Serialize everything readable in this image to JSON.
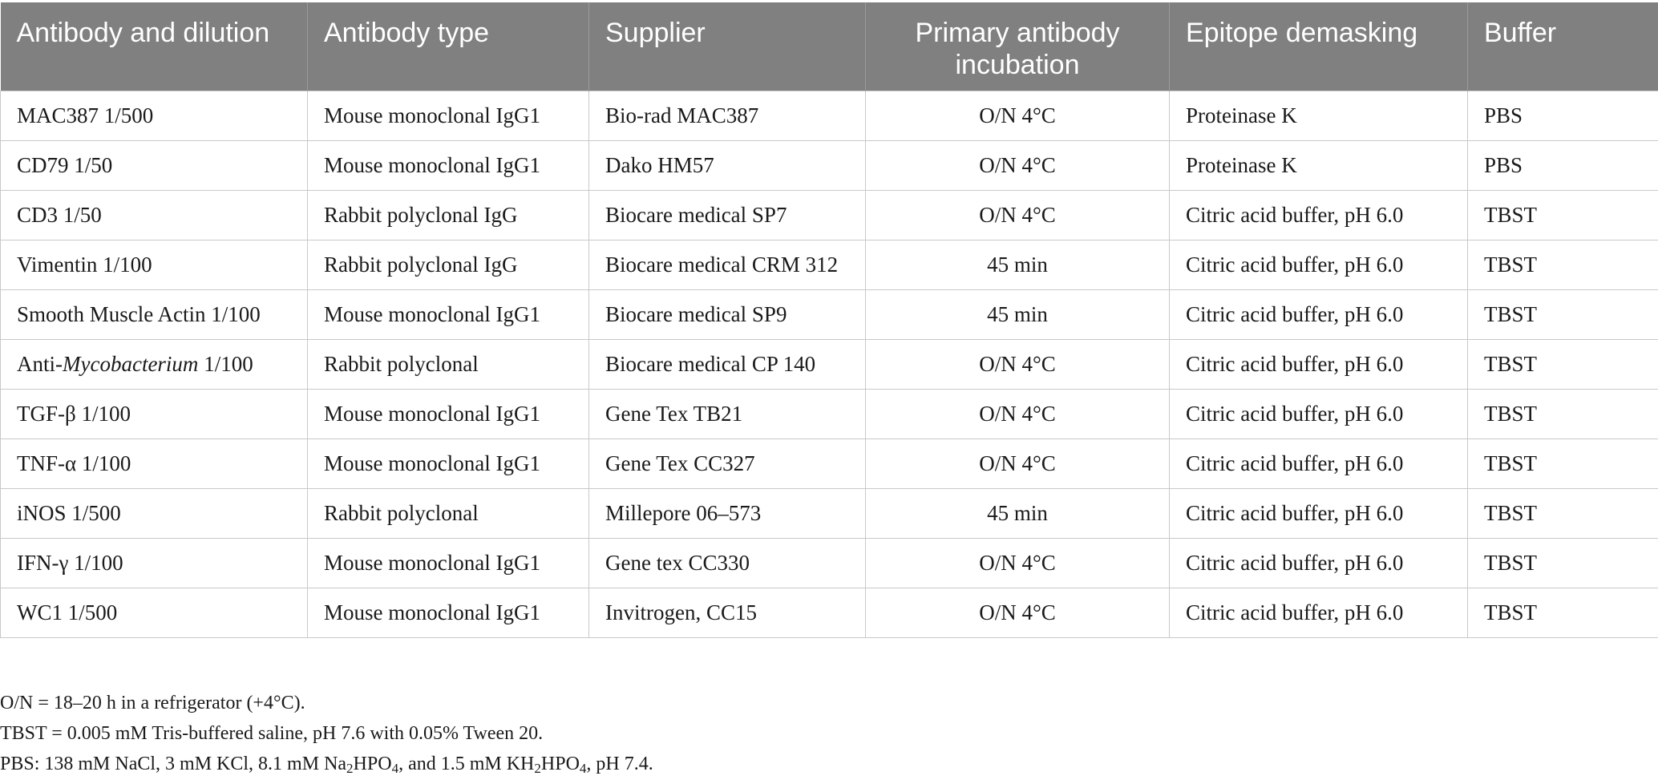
{
  "table": {
    "headers": [
      "Antibody and dilution",
      "Antibody type",
      "Supplier",
      "Primary antibody incubation",
      "Epitope demasking",
      "Buffer"
    ],
    "rows": [
      {
        "antibody": "MAC387 1/500",
        "type": "Mouse monoclonal IgG1",
        "supplier": "Bio-rad MAC387",
        "incubation": "O/N 4°C",
        "demasking": "Proteinase K",
        "buffer": "PBS"
      },
      {
        "antibody": "CD79 1/50",
        "type": "Mouse monoclonal IgG1",
        "supplier": "Dako HM57",
        "incubation": "O/N 4°C",
        "demasking": "Proteinase K",
        "buffer": "PBS"
      },
      {
        "antibody": "CD3 1/50",
        "type": "Rabbit polyclonal IgG",
        "supplier": "Biocare medical SP7",
        "incubation": "O/N 4°C",
        "demasking": "Citric acid buffer, pH 6.0",
        "buffer": "TBST"
      },
      {
        "antibody": "Vimentin 1/100",
        "type": "Rabbit polyclonal IgG",
        "supplier": "Biocare medical CRM 312",
        "incubation": "45 min",
        "demasking": "Citric acid buffer, pH 6.0",
        "buffer": "TBST"
      },
      {
        "antibody": "Smooth Muscle Actin 1/100",
        "type": "Mouse monoclonal IgG1",
        "supplier": "Biocare medical SP9",
        "incubation": "45 min",
        "demasking": "Citric acid buffer, pH 6.0",
        "buffer": "TBST"
      },
      {
        "antibody_prefix": "Anti-",
        "antibody_italic": "Mycobacterium",
        "antibody_suffix": " 1/100",
        "type": "Rabbit polyclonal",
        "supplier": "Biocare medical CP 140",
        "incubation": "O/N 4°C",
        "demasking": "Citric acid buffer, pH 6.0",
        "buffer": "TBST"
      },
      {
        "antibody": "TGF-β 1/100",
        "type": "Mouse monoclonal IgG1",
        "supplier": "Gene Tex TB21",
        "incubation": "O/N 4°C",
        "demasking": "Citric acid buffer, pH 6.0",
        "buffer": "TBST"
      },
      {
        "antibody": "TNF-α 1/100",
        "type": "Mouse monoclonal IgG1",
        "supplier": "Gene Tex CC327",
        "incubation": "O/N 4°C",
        "demasking": "Citric acid buffer, pH 6.0",
        "buffer": "TBST"
      },
      {
        "antibody": "iNOS 1/500",
        "type": "Rabbit polyclonal",
        "supplier": "Millepore 06–573",
        "incubation": "45 min",
        "demasking": "Citric acid buffer, pH 6.0",
        "buffer": "TBST"
      },
      {
        "antibody": "IFN-γ 1/100",
        "type": "Mouse monoclonal IgG1",
        "supplier": "Gene tex CC330",
        "incubation": "O/N 4°C",
        "demasking": "Citric acid buffer, pH 6.0",
        "buffer": "TBST"
      },
      {
        "antibody": "WC1 1/500",
        "type": "Mouse monoclonal IgG1",
        "supplier": "Invitrogen, CC15",
        "incubation": "O/N 4°C",
        "demasking": "Citric acid buffer, pH 6.0",
        "buffer": "TBST"
      }
    ]
  },
  "footnotes": {
    "on": "O/N = 18–20 h in a refrigerator (+4°C).",
    "tbst": "TBST = 0.005 mM Tris-buffered saline, pH 7.6 with 0.05% Tween 20.",
    "pbs": {
      "part1": "PBS: 138 mM NaCl, 3 mM KCl, 8.1 mM Na",
      "sub1": "2",
      "part2": "HPO",
      "sub2": "4",
      "part3": ", and 1.5 mM KH",
      "sub3": "2",
      "part4": "HPO",
      "sub4": "4",
      "part5": ", pH 7.4."
    }
  },
  "colors": {
    "header_bg": "#7f807f",
    "header_text": "#ffffff",
    "grid_line": "#c9c9c9"
  }
}
